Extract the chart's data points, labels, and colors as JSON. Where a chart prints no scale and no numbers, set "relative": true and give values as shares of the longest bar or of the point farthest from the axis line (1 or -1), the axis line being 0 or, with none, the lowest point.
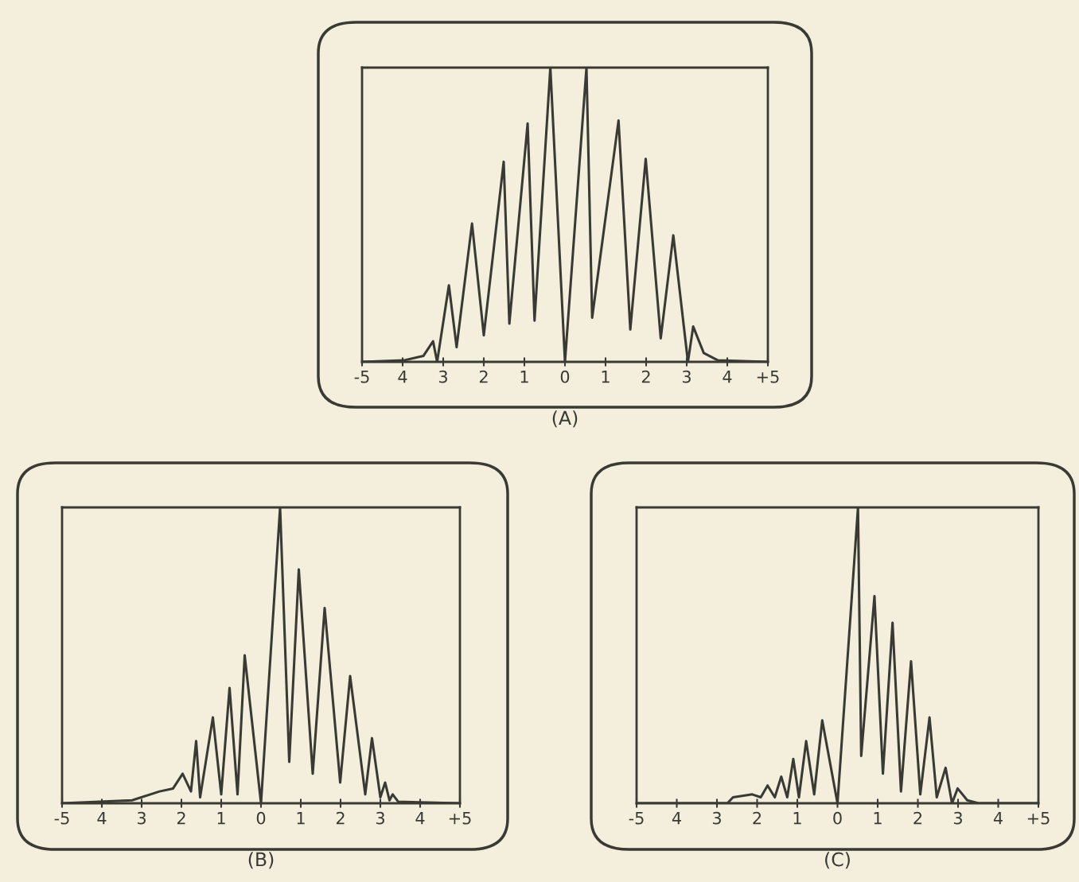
{
  "chart_data": [
    {
      "type": "line",
      "relative": true,
      "xlabel": "(A)",
      "xlim": [
        -5,
        5
      ],
      "tick_labels": "x",
      "grid": false,
      "legend": false,
      "marker": "none",
      "line_style": "solid",
      "xticks": [
        -5,
        {
          "value": -4,
          "label": "4"
        },
        {
          "value": -3,
          "label": "3"
        },
        {
          "value": -2,
          "label": "2"
        },
        {
          "value": -1,
          "label": "1"
        },
        0,
        1,
        2,
        3,
        4,
        {
          "value": 5,
          "label": "+5"
        }
      ],
      "series": [
        {
          "color": "#3a3a35",
          "x": [
            -5,
            -3.97,
            -3.49,
            -3.25,
            -3.15,
            -2.86,
            -2.67,
            -2.29,
            -2.0,
            -1.51,
            -1.37,
            -0.92,
            -0.75,
            -0.36,
            0,
            0.53,
            0.67,
            1.32,
            1.61,
            1.99,
            2.36,
            2.67,
            3.03,
            3.16,
            3.42,
            3.77,
            5
          ],
          "values": [
            0,
            0.005,
            0.02,
            0.07,
            0.0,
            0.26,
            0.05,
            0.47,
            0.09,
            0.68,
            0.13,
            0.81,
            0.14,
            1.0,
            0.0,
            1.0,
            0.15,
            0.82,
            0.11,
            0.69,
            0.08,
            0.43,
            0.0,
            0.12,
            0.03,
            0.005,
            0
          ]
        }
      ]
    },
    {
      "type": "line",
      "relative": true,
      "xlabel": "(B)",
      "xlim": [
        -5,
        5
      ],
      "tick_labels": "x",
      "grid": false,
      "legend": false,
      "marker": "none",
      "line_style": "solid",
      "xticks": [
        -5,
        {
          "value": -4,
          "label": "4"
        },
        {
          "value": -3,
          "label": "3"
        },
        {
          "value": -2,
          "label": "2"
        },
        {
          "value": -1,
          "label": "1"
        },
        0,
        1,
        2,
        3,
        4,
        {
          "value": 5,
          "label": "+5"
        }
      ],
      "series": [
        {
          "color": "#3a3a35",
          "x": [
            -5,
            -3.24,
            -2.55,
            -2.21,
            -1.97,
            -1.76,
            -1.63,
            -1.53,
            -1.21,
            -1.0,
            -0.79,
            -0.59,
            -0.41,
            0,
            0.48,
            0.71,
            0.95,
            1.3,
            1.6,
            1.99,
            2.24,
            2.62,
            2.79,
            3.0,
            3.12,
            3.23,
            3.31,
            3.45,
            5
          ],
          "values": [
            0,
            0.01,
            0.04,
            0.05,
            0.1,
            0.04,
            0.21,
            0.02,
            0.29,
            0.03,
            0.39,
            0.03,
            0.5,
            0.0,
            1.0,
            0.14,
            0.79,
            0.1,
            0.66,
            0.07,
            0.43,
            0.03,
            0.22,
            0.02,
            0.07,
            0.01,
            0.03,
            0.005,
            0
          ]
        }
      ]
    },
    {
      "type": "line",
      "relative": true,
      "xlabel": "(C)",
      "xlim": [
        -5,
        5
      ],
      "tick_labels": "x",
      "grid": false,
      "legend": false,
      "marker": "none",
      "line_style": "solid",
      "xticks": [
        -5,
        {
          "value": -4,
          "label": "4"
        },
        {
          "value": -3,
          "label": "3"
        },
        {
          "value": -2,
          "label": "2"
        },
        {
          "value": -1,
          "label": "1"
        },
        0,
        1,
        2,
        3,
        4,
        {
          "value": 5,
          "label": "+5"
        }
      ],
      "series": [
        {
          "color": "#3a3a35",
          "x": [
            -5,
            -2.74,
            -2.6,
            -2.12,
            -1.91,
            -1.74,
            -1.56,
            -1.4,
            -1.25,
            -1.1,
            -0.96,
            -0.78,
            -0.58,
            -0.38,
            0,
            0.51,
            0.59,
            0.92,
            1.13,
            1.37,
            1.58,
            1.83,
            2.06,
            2.29,
            2.47,
            2.69,
            2.85,
            2.99,
            3.23,
            3.51,
            5
          ],
          "values": [
            0,
            0.0,
            0.02,
            0.03,
            0.02,
            0.06,
            0.02,
            0.09,
            0.02,
            0.15,
            0.02,
            0.21,
            0.03,
            0.28,
            0.0,
            1.0,
            0.16,
            0.7,
            0.1,
            0.61,
            0.04,
            0.48,
            0.03,
            0.29,
            0.02,
            0.12,
            0.0,
            0.05,
            0.01,
            0.0,
            0
          ]
        }
      ]
    }
  ]
}
